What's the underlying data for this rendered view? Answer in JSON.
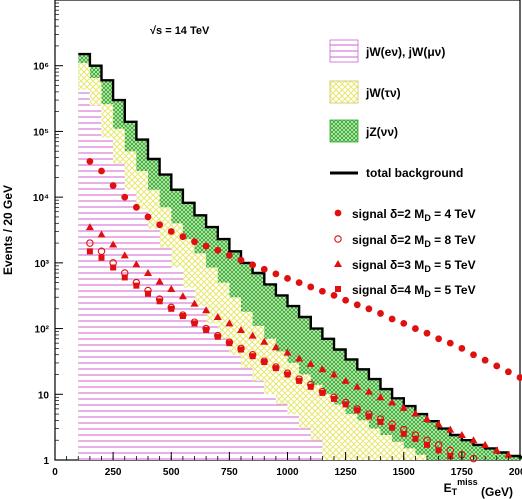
{
  "chart_data": {
    "type": "area",
    "energy_label": "√s = 14 TeV",
    "xlabel": "E_T^miss (GeV)",
    "ylabel": "Events / 20 GeV",
    "xlim": [
      0,
      2000
    ],
    "ylim": [
      1,
      10000000
    ],
    "yscale": "log",
    "x_ticks": [
      0,
      250,
      500,
      750,
      1000,
      1250,
      1500,
      1750,
      2000
    ],
    "y_ticks": [
      {
        "value": 1,
        "label": "1"
      },
      {
        "value": 10,
        "label": "10"
      },
      {
        "value": 100,
        "label": "10²"
      },
      {
        "value": 1000,
        "label": "10³"
      },
      {
        "value": 10000,
        "label": "10⁴"
      },
      {
        "value": 100000,
        "label": "10⁵"
      },
      {
        "value": 1000000,
        "label": "10⁶"
      }
    ],
    "legend": [
      {
        "label": "jW(eν), jW(μν)",
        "style": "hatch",
        "color": "#e060e0"
      },
      {
        "label": "jW(τν)",
        "style": "cross",
        "color": "#e8e870"
      },
      {
        "label": "jZ(νν)",
        "style": "cross",
        "color": "#40c040"
      },
      {
        "label": "total background",
        "style": "line",
        "color": "#000000"
      },
      {
        "label": "signal δ=2 M_D = 4 TeV",
        "style": "filled-circle",
        "color": "#e01010"
      },
      {
        "label": "signal δ=2 M_D = 8 TeV",
        "style": "open-circle",
        "color": "#e01010"
      },
      {
        "label": "signal δ=3 M_D = 5 TeV",
        "style": "triangle",
        "color": "#e01010"
      },
      {
        "label": "signal δ=4 M_D = 5 TeV",
        "style": "square",
        "color": "#e01010"
      }
    ],
    "series": [
      {
        "name": "total background",
        "style": "line",
        "points": [
          [
            100,
            1500000
          ],
          [
            150,
            1000000
          ],
          [
            200,
            600000
          ],
          [
            250,
            300000
          ],
          [
            300,
            140000
          ],
          [
            350,
            75000
          ],
          [
            400,
            38000
          ],
          [
            450,
            22000
          ],
          [
            500,
            13000
          ],
          [
            550,
            8200
          ],
          [
            600,
            5300
          ],
          [
            650,
            3500
          ],
          [
            700,
            2300
          ],
          [
            750,
            1500
          ],
          [
            800,
            1000
          ],
          [
            850,
            700
          ],
          [
            900,
            470
          ],
          [
            950,
            320
          ],
          [
            1000,
            220
          ],
          [
            1050,
            150
          ],
          [
            1100,
            100
          ],
          [
            1150,
            70
          ],
          [
            1200,
            48
          ],
          [
            1250,
            34
          ],
          [
            1300,
            24
          ],
          [
            1350,
            17
          ],
          [
            1400,
            12
          ],
          [
            1450,
            8.7
          ],
          [
            1500,
            6.6
          ],
          [
            1550,
            5
          ],
          [
            1600,
            3.9
          ],
          [
            1650,
            3
          ],
          [
            1700,
            2.4
          ],
          [
            1750,
            2
          ],
          [
            1800,
            1.7
          ],
          [
            1850,
            1.5
          ],
          [
            1900,
            1.3
          ],
          [
            1950,
            1.15
          ],
          [
            2000,
            1.1
          ]
        ]
      },
      {
        "name": "jW(eν), jW(μν)",
        "style": "hatch",
        "points": [
          [
            100,
            430000
          ],
          [
            150,
            250000
          ],
          [
            200,
            80000
          ],
          [
            250,
            32000
          ],
          [
            300,
            13000
          ],
          [
            350,
            6500
          ],
          [
            400,
            3300
          ],
          [
            450,
            1700
          ],
          [
            500,
            850
          ],
          [
            550,
            420
          ],
          [
            600,
            220
          ],
          [
            650,
            120
          ],
          [
            700,
            70
          ],
          [
            750,
            40
          ],
          [
            800,
            25
          ],
          [
            850,
            16
          ],
          [
            900,
            10
          ],
          [
            950,
            7
          ],
          [
            1000,
            5
          ],
          [
            1050,
            3
          ],
          [
            1100,
            2
          ],
          [
            1150,
            1
          ]
        ]
      },
      {
        "name": "jW(τν)",
        "style": "cross",
        "points": [
          [
            100,
            1100000
          ],
          [
            150,
            650000
          ],
          [
            200,
            260000
          ],
          [
            250,
            110000
          ],
          [
            300,
            50000
          ],
          [
            350,
            25000
          ],
          [
            400,
            13000
          ],
          [
            450,
            7000
          ],
          [
            500,
            4000
          ],
          [
            550,
            2300
          ],
          [
            600,
            1400
          ],
          [
            650,
            850
          ],
          [
            700,
            500
          ],
          [
            750,
            300
          ],
          [
            800,
            180
          ],
          [
            850,
            110
          ],
          [
            900,
            70
          ],
          [
            950,
            45
          ],
          [
            1000,
            30
          ],
          [
            1050,
            20
          ],
          [
            1100,
            14
          ],
          [
            1150,
            10
          ],
          [
            1200,
            7
          ],
          [
            1250,
            5
          ],
          [
            1300,
            4
          ],
          [
            1350,
            3
          ],
          [
            1400,
            2.4
          ],
          [
            1450,
            1.9
          ],
          [
            1500,
            1.5
          ],
          [
            1550,
            1.2
          ],
          [
            1600,
            1
          ]
        ]
      },
      {
        "name": "signal δ=2 M_D = 4 TeV",
        "style": "filled-circle",
        "points": [
          [
            150,
            35000
          ],
          [
            200,
            25000
          ],
          [
            250,
            15000
          ],
          [
            300,
            10000
          ],
          [
            350,
            7000
          ],
          [
            400,
            5000
          ],
          [
            450,
            3800
          ],
          [
            500,
            3000
          ],
          [
            550,
            2500
          ],
          [
            600,
            2100
          ],
          [
            650,
            1800
          ],
          [
            700,
            1550
          ],
          [
            750,
            1300
          ],
          [
            800,
            1100
          ],
          [
            850,
            930
          ],
          [
            900,
            800
          ],
          [
            950,
            680
          ],
          [
            1000,
            580
          ],
          [
            1050,
            500
          ],
          [
            1100,
            430
          ],
          [
            1150,
            370
          ],
          [
            1200,
            320
          ],
          [
            1250,
            270
          ],
          [
            1300,
            230
          ],
          [
            1350,
            200
          ],
          [
            1400,
            170
          ],
          [
            1450,
            140
          ],
          [
            1500,
            120
          ],
          [
            1550,
            100
          ],
          [
            1600,
            85
          ],
          [
            1650,
            70
          ],
          [
            1700,
            60
          ],
          [
            1750,
            50
          ],
          [
            1800,
            40
          ],
          [
            1850,
            33
          ],
          [
            1900,
            27
          ],
          [
            1950,
            22
          ],
          [
            2000,
            18
          ]
        ]
      },
      {
        "name": "signal δ=2 M_D = 8 TeV",
        "style": "open-circle",
        "points": [
          [
            150,
            2000
          ],
          [
            200,
            1500
          ],
          [
            250,
            1000
          ],
          [
            300,
            700
          ],
          [
            350,
            500
          ],
          [
            400,
            380
          ],
          [
            450,
            280
          ],
          [
            500,
            210
          ],
          [
            550,
            160
          ],
          [
            600,
            125
          ],
          [
            650,
            100
          ],
          [
            700,
            78
          ],
          [
            750,
            62
          ],
          [
            800,
            50
          ],
          [
            850,
            40
          ],
          [
            900,
            32
          ],
          [
            950,
            26
          ],
          [
            1000,
            21
          ],
          [
            1050,
            17
          ],
          [
            1100,
            14
          ],
          [
            1150,
            11
          ],
          [
            1200,
            9
          ],
          [
            1250,
            7.5
          ],
          [
            1300,
            6
          ],
          [
            1350,
            5
          ],
          [
            1400,
            4.2
          ],
          [
            1450,
            3.5
          ],
          [
            1500,
            2.9
          ],
          [
            1550,
            2.4
          ],
          [
            1600,
            2
          ],
          [
            1650,
            1.7
          ],
          [
            1700,
            1.4
          ],
          [
            1750,
            1.2
          ],
          [
            1800,
            1.05
          ]
        ]
      },
      {
        "name": "signal δ=3 M_D = 5 TeV",
        "style": "triangle",
        "points": [
          [
            150,
            3500
          ],
          [
            200,
            2700
          ],
          [
            250,
            1900
          ],
          [
            300,
            1300
          ],
          [
            350,
            950
          ],
          [
            400,
            700
          ],
          [
            450,
            520
          ],
          [
            500,
            400
          ],
          [
            550,
            310
          ],
          [
            600,
            240
          ],
          [
            650,
            190
          ],
          [
            700,
            150
          ],
          [
            750,
            120
          ],
          [
            800,
            95
          ],
          [
            850,
            78
          ],
          [
            900,
            63
          ],
          [
            950,
            52
          ],
          [
            1000,
            43
          ],
          [
            1050,
            35
          ],
          [
            1100,
            29
          ],
          [
            1150,
            24
          ],
          [
            1200,
            20
          ],
          [
            1250,
            16
          ],
          [
            1300,
            13
          ],
          [
            1350,
            11
          ],
          [
            1400,
            9
          ],
          [
            1450,
            7.5
          ],
          [
            1500,
            6.2
          ],
          [
            1550,
            5.1
          ],
          [
            1600,
            4.2
          ],
          [
            1650,
            3.5
          ],
          [
            1700,
            2.9
          ],
          [
            1750,
            2.4
          ],
          [
            1800,
            2
          ],
          [
            1850,
            1.7
          ],
          [
            1900,
            1.4
          ],
          [
            1950,
            1.2
          ]
        ]
      },
      {
        "name": "signal δ=4 M_D = 5 TeV",
        "style": "square",
        "points": [
          [
            150,
            1500
          ],
          [
            200,
            1200
          ],
          [
            250,
            850
          ],
          [
            300,
            600
          ],
          [
            350,
            450
          ],
          [
            400,
            340
          ],
          [
            450,
            260
          ],
          [
            500,
            200
          ],
          [
            550,
            155
          ],
          [
            600,
            120
          ],
          [
            650,
            95
          ],
          [
            700,
            75
          ],
          [
            750,
            60
          ],
          [
            800,
            48
          ],
          [
            850,
            38
          ],
          [
            900,
            31
          ],
          [
            950,
            25
          ],
          [
            1000,
            20
          ],
          [
            1050,
            16
          ],
          [
            1100,
            13
          ],
          [
            1150,
            10.5
          ],
          [
            1200,
            8.5
          ],
          [
            1250,
            7
          ],
          [
            1300,
            5.7
          ],
          [
            1350,
            4.6
          ],
          [
            1400,
            3.8
          ],
          [
            1450,
            3.1
          ],
          [
            1500,
            2.5
          ],
          [
            1550,
            2.1
          ],
          [
            1600,
            1.7
          ],
          [
            1650,
            1.4
          ],
          [
            1700,
            1.15
          ]
        ]
      }
    ]
  }
}
